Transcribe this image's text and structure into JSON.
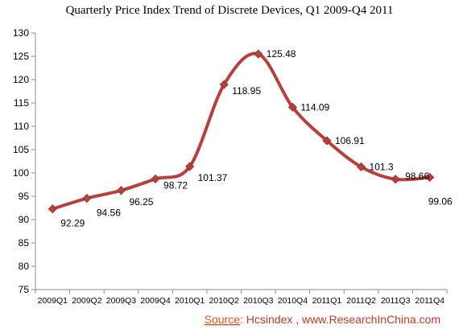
{
  "chart_data": {
    "type": "line",
    "title": "Quarterly Price Index Trend of Discrete Devices, Q1 2009-Q4 2011",
    "xlabel": "",
    "ylabel": "",
    "categories": [
      "2009Q1",
      "2009Q2",
      "2009Q3",
      "2009Q4",
      "2010Q1",
      "2010Q2",
      "2010Q3",
      "2010Q4",
      "2011Q1",
      "2011Q2",
      "2011Q3",
      "2011Q4"
    ],
    "series": [
      {
        "values": [
          92.29,
          94.56,
          96.25,
          98.72,
          101.37,
          118.95,
          125.48,
          114.09,
          106.91,
          101.3,
          98.66,
          99.06
        ],
        "labels": [
          "92.29",
          "94.56",
          "96.25",
          "98.72",
          "101.37",
          "118.95",
          "125.48",
          "114.09",
          "106.91",
          "101.3",
          "98.66",
          "99.06"
        ],
        "color": "#b5403d"
      }
    ],
    "ylim": [
      75,
      130
    ],
    "yticks": [
      "75",
      "80",
      "85",
      "90",
      "95",
      "100",
      "105",
      "110",
      "115",
      "120",
      "125",
      "130"
    ],
    "smooth": true,
    "marker": "diamond",
    "grid": false,
    "legend": "none"
  },
  "source": {
    "label": "Source",
    "text": ": Hcsindex , www.ResearchInChina.com",
    "label_color": "#d9531e",
    "text_color": "#c0392b"
  }
}
